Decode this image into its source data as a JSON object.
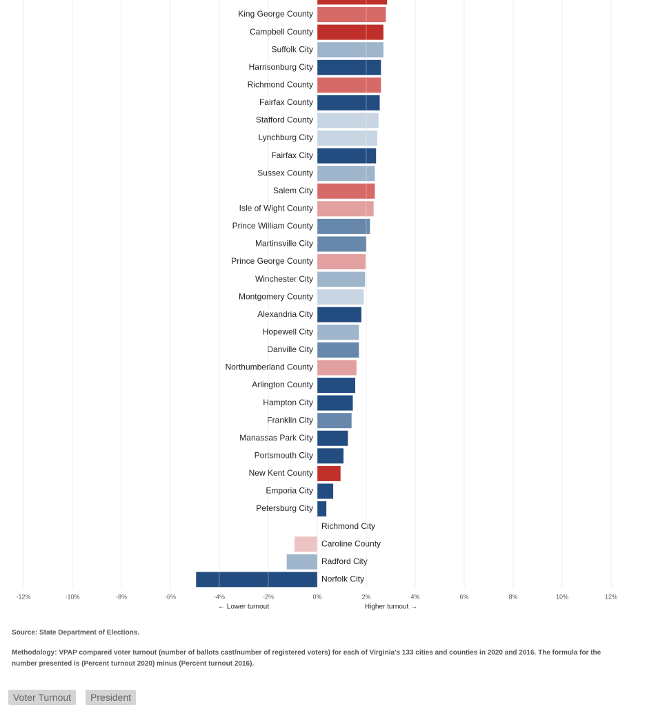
{
  "chart_data": {
    "type": "bar",
    "orientation": "horizontal",
    "categories": [
      null,
      "King George County",
      "Campbell County",
      "Suffolk City",
      "Harrisonburg City",
      "Richmond County",
      "Fairfax County",
      "Stafford County",
      "Lynchburg City",
      "Fairfax City",
      "Sussex County",
      "Salem City",
      "Isle of Wight County",
      "Prince William County",
      "Martinsville City",
      "Prince George County",
      "Winchester City",
      "Montgomery County",
      "Alexandria City",
      "Hopewell City",
      "Danville City",
      "Northumberland County",
      "Arlington County",
      "Hampton City",
      "Franklin City",
      "Manassas Park City",
      "Portsmouth City",
      "New Kent County",
      "Emporia City",
      "Petersburg City",
      "Richmond City",
      "Caroline County",
      "Radford City",
      "Norfolk City"
    ],
    "values": [
      2.85,
      2.8,
      2.7,
      2.7,
      2.6,
      2.6,
      2.55,
      2.5,
      2.45,
      2.4,
      2.35,
      2.35,
      2.3,
      2.15,
      2.0,
      1.97,
      1.95,
      1.9,
      1.8,
      1.7,
      1.7,
      1.6,
      1.55,
      1.45,
      1.4,
      1.25,
      1.07,
      0.95,
      0.65,
      0.37,
      0,
      -0.93,
      -1.25,
      -4.95
    ],
    "colors": [
      "#c0302a",
      "#d66a67",
      "#c0302a",
      "#9fb5cc",
      "#234d80",
      "#d66a67",
      "#234d80",
      "#c8d5e2",
      "#c8d5e2",
      "#234d80",
      "#9fb5cc",
      "#d66a67",
      "#e3a0a0",
      "#6788ab",
      "#6788ab",
      "#e3a0a0",
      "#9fb5cc",
      "#c8d5e2",
      "#234d80",
      "#9fb5cc",
      "#6788ab",
      "#e3a0a0",
      "#234d80",
      "#234d80",
      "#6788ab",
      "#234d80",
      "#234d80",
      "#c0302a",
      "#234d80",
      "#234d80",
      "#9fb5cc",
      "#ecc4c4",
      "#9fb5cc",
      "#234d80"
    ],
    "xlim": [
      -12,
      12
    ],
    "xticks": [
      {
        "value": -12,
        "label": "-12%"
      },
      {
        "value": -10,
        "label": "-10%"
      },
      {
        "value": -8,
        "label": "-8%"
      },
      {
        "value": -6,
        "label": "-6%"
      },
      {
        "value": -4,
        "label": "-4%"
      },
      {
        "value": -2,
        "label": "-2%"
      },
      {
        "value": 0,
        "label": "0%"
      },
      {
        "value": 2,
        "label": "2%"
      },
      {
        "value": 4,
        "label": "4%"
      },
      {
        "value": 6,
        "label": "6%"
      },
      {
        "value": 8,
        "label": "8%"
      },
      {
        "value": 10,
        "label": "10%"
      },
      {
        "value": 12,
        "label": "12%"
      }
    ],
    "grid": true,
    "lower_label": "← Lower turnout",
    "higher_label": "Higher turnout →"
  },
  "source": "Source: State Department of Elections.",
  "methodology": "Methodology: VPAP compared voter turnout (number of ballots cast/number of registered voters) for each of Virginia's 133 cities and counties in 2020 and 2016. The formula for the number presented is (Percent turnout 2020) minus (Percent turnout 2016).",
  "buttons": [
    "Voter Turnout",
    "President"
  ]
}
